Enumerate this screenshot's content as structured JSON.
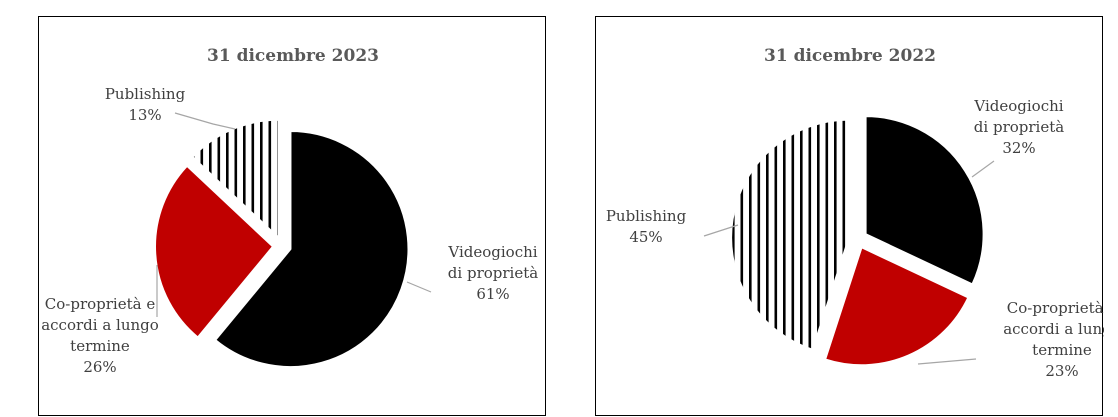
{
  "chart_data": [
    {
      "type": "pie",
      "title": "31 dicembre 2023",
      "slices": [
        {
          "label": [
            "Videogiochi",
            "di proprietà"
          ],
          "value": 61,
          "value_label": "61%",
          "color": "#000000",
          "pattern": "solid"
        },
        {
          "label": [
            "Co-proprietà e",
            "accordi a lungo",
            "termine"
          ],
          "value": 26,
          "value_label": "26%",
          "color": "#c00000",
          "pattern": "solid"
        },
        {
          "label": [
            "Publishing"
          ],
          "value": 13,
          "value_label": "13%",
          "color": "#ffffff",
          "pattern": "vertical-stripes"
        }
      ],
      "legend": "none"
    },
    {
      "type": "pie",
      "title": "31 dicembre 2022",
      "slices": [
        {
          "label": [
            "Videogiochi",
            "di proprietà"
          ],
          "value": 32,
          "value_label": "32%",
          "color": "#000000",
          "pattern": "solid"
        },
        {
          "label": [
            "Co-proprietà e",
            "accordi a lungo",
            "termine"
          ],
          "value": 23,
          "value_label": "23%",
          "color": "#c00000",
          "pattern": "solid"
        },
        {
          "label": [
            "Publishing"
          ],
          "value": 45,
          "value_label": "45%",
          "color": "#ffffff",
          "pattern": "vertical-stripes"
        }
      ],
      "legend": "none"
    }
  ]
}
